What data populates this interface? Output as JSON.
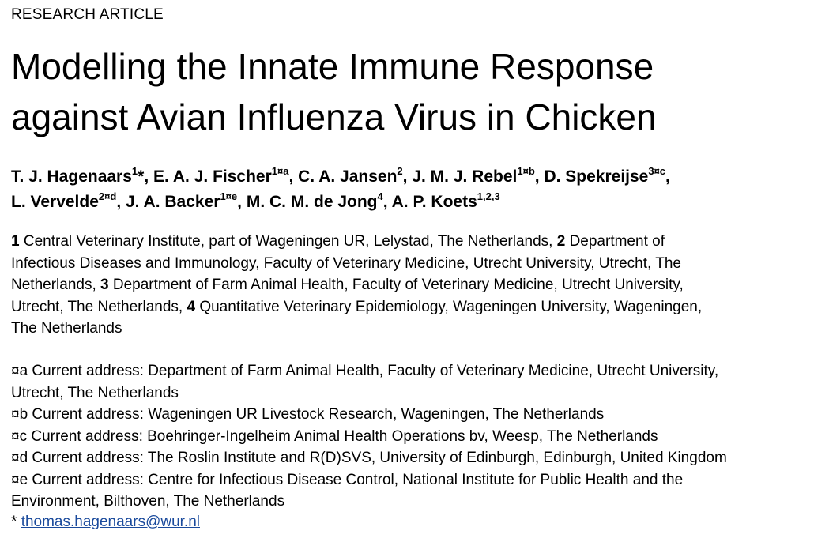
{
  "section_label": "RESEARCH ARTICLE",
  "title": {
    "line1": "Modelling the Innate Immune Response",
    "line2": "against Avian Influenza Virus in Chicken"
  },
  "authors": {
    "line1": [
      {
        "name": "T. J. Hagenaars",
        "sup": "1",
        "suffix": "*, "
      },
      {
        "name": "E. A. J. Fischer",
        "sup": "1¤a",
        "suffix": ", "
      },
      {
        "name": "C. A. Jansen",
        "sup": "2",
        "suffix": ", "
      },
      {
        "name": "J. M. J. Rebel",
        "sup": "1¤b",
        "suffix": ", "
      },
      {
        "name": "D. Spekreijse",
        "sup": "3¤c",
        "suffix": ","
      }
    ],
    "line2": [
      {
        "name": "L. Vervelde",
        "sup": "2¤d",
        "suffix": ", "
      },
      {
        "name": "J. A. Backer",
        "sup": "1¤e",
        "suffix": ", "
      },
      {
        "name": "M. C. M. de Jong",
        "sup": "4",
        "suffix": ", "
      },
      {
        "name": "A. P. Koets",
        "sup": "1,2,3",
        "suffix": ""
      }
    ]
  },
  "affiliations": {
    "lines": [
      [
        {
          "num": "1"
        },
        {
          "text": " Central Veterinary Institute, part of Wageningen UR, Lelystad, The Netherlands, "
        },
        {
          "num": "2"
        },
        {
          "text": " Department of"
        }
      ],
      [
        {
          "text": "Infectious Diseases and Immunology, Faculty of Veterinary Medicine, Utrecht University, Utrecht, The"
        }
      ],
      [
        {
          "text": "Netherlands, "
        },
        {
          "num": "3"
        },
        {
          "text": " Department of Farm Animal Health, Faculty of Veterinary Medicine, Utrecht University,"
        }
      ],
      [
        {
          "text": "Utrecht, The Netherlands, "
        },
        {
          "num": "4"
        },
        {
          "text": " Quantitative Veterinary Epidemiology, Wageningen University, Wageningen,"
        }
      ],
      [
        {
          "text": "The Netherlands"
        }
      ]
    ]
  },
  "addresses": {
    "lines": [
      "¤a  Current address: Department of Farm Animal Health, Faculty of Veterinary Medicine, Utrecht University,",
      "Utrecht, The Netherlands",
      "¤b  Current address: Wageningen UR Livestock Research, Wageningen, The Netherlands",
      "¤c  Current address: Boehringer-Ingelheim Animal Health Operations bv, Weesp, The Netherlands",
      "¤d  Current address: The Roslin Institute and R(D)SVS, University of Edinburgh, Edinburgh, United Kingdom",
      "¤e  Current address: Centre for Infectious Disease Control, National Institute for Public Health and the",
      "Environment, Bilthoven, The Netherlands"
    ]
  },
  "correspondence": {
    "marker": "*",
    "email": "thomas.hagenaars@wur.nl"
  },
  "colors": {
    "link": "#1a4a9c",
    "text": "#000000"
  }
}
